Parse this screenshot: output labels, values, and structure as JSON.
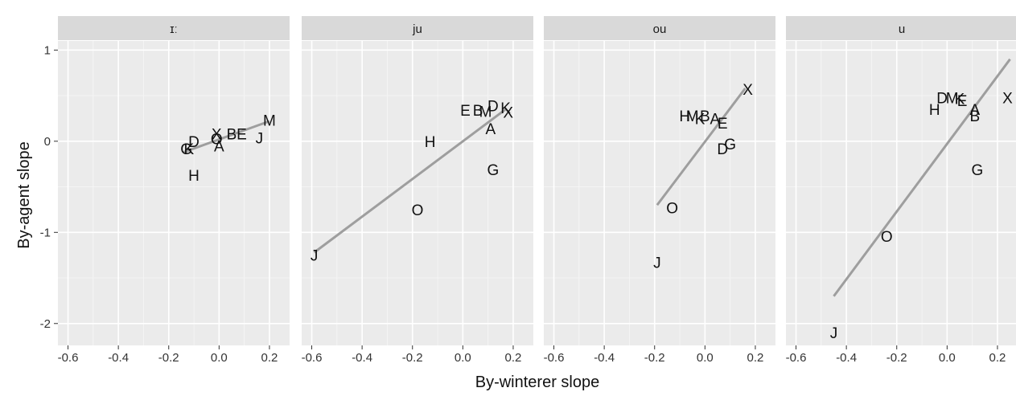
{
  "chart_data": {
    "type": "scatter",
    "xlabel": "By-winterer slope",
    "ylabel": "By-agent slope",
    "x_ticks": [
      "-0.6",
      "-0.4",
      "-0.2",
      "0.0",
      "0.2"
    ],
    "y_ticks": [
      "1",
      "0",
      "-1",
      "-2"
    ],
    "xlim": [
      -0.64,
      0.28
    ],
    "ylim": [
      -2.24,
      1.1
    ],
    "grid": true,
    "facets": [
      {
        "label": "ɪː",
        "fit_line": {
          "x": [
            -0.14,
            0.2
          ],
          "y": [
            -0.12,
            0.22
          ]
        },
        "points": [
          {
            "label": "M",
            "x": 0.2,
            "y": 0.23
          },
          {
            "label": "X",
            "x": -0.01,
            "y": 0.08
          },
          {
            "label": "B",
            "x": 0.05,
            "y": 0.08
          },
          {
            "label": "E",
            "x": 0.09,
            "y": 0.08
          },
          {
            "label": "J",
            "x": 0.16,
            "y": 0.04
          },
          {
            "label": "D",
            "x": -0.1,
            "y": 0.0
          },
          {
            "label": "O",
            "x": -0.01,
            "y": 0.03
          },
          {
            "label": "A",
            "x": 0.0,
            "y": -0.05
          },
          {
            "label": "G",
            "x": -0.13,
            "y": -0.08
          },
          {
            "label": "K",
            "x": -0.12,
            "y": -0.08
          },
          {
            "label": "H",
            "x": -0.1,
            "y": -0.37
          }
        ]
      },
      {
        "label": "ju",
        "fit_line": {
          "x": [
            -0.59,
            0.17
          ],
          "y": [
            -1.22,
            0.35
          ]
        },
        "points": [
          {
            "label": "E",
            "x": 0.01,
            "y": 0.34
          },
          {
            "label": "B",
            "x": 0.06,
            "y": 0.34
          },
          {
            "label": "M",
            "x": 0.09,
            "y": 0.33
          },
          {
            "label": "D",
            "x": 0.12,
            "y": 0.39
          },
          {
            "label": "K",
            "x": 0.17,
            "y": 0.37
          },
          {
            "label": "X",
            "x": 0.18,
            "y": 0.32
          },
          {
            "label": "A",
            "x": 0.11,
            "y": 0.14
          },
          {
            "label": "H",
            "x": -0.13,
            "y": 0.0
          },
          {
            "label": "G",
            "x": 0.12,
            "y": -0.31
          },
          {
            "label": "O",
            "x": -0.18,
            "y": -0.75
          },
          {
            "label": "J",
            "x": -0.59,
            "y": -1.25
          }
        ]
      },
      {
        "label": "ou",
        "fit_line": {
          "x": [
            -0.19,
            0.16
          ],
          "y": [
            -0.7,
            0.58
          ]
        },
        "points": [
          {
            "label": "X",
            "x": 0.17,
            "y": 0.57
          },
          {
            "label": "H",
            "x": -0.08,
            "y": 0.28
          },
          {
            "label": "M",
            "x": -0.05,
            "y": 0.28
          },
          {
            "label": "B",
            "x": 0.0,
            "y": 0.28
          },
          {
            "label": "K",
            "x": -0.02,
            "y": 0.25
          },
          {
            "label": "A",
            "x": 0.04,
            "y": 0.25
          },
          {
            "label": "E",
            "x": 0.07,
            "y": 0.2
          },
          {
            "label": "G",
            "x": 0.1,
            "y": -0.03
          },
          {
            "label": "D",
            "x": 0.07,
            "y": -0.08
          },
          {
            "label": "O",
            "x": -0.13,
            "y": -0.73
          },
          {
            "label": "J",
            "x": -0.19,
            "y": -1.33
          }
        ]
      },
      {
        "label": "u",
        "fit_line": {
          "x": [
            -0.45,
            0.25
          ],
          "y": [
            -1.7,
            0.9
          ]
        },
        "points": [
          {
            "label": "D",
            "x": -0.02,
            "y": 0.48
          },
          {
            "label": "M",
            "x": 0.02,
            "y": 0.48
          },
          {
            "label": "K",
            "x": 0.05,
            "y": 0.47
          },
          {
            "label": "E",
            "x": 0.06,
            "y": 0.45
          },
          {
            "label": "X",
            "x": 0.24,
            "y": 0.48
          },
          {
            "label": "H",
            "x": -0.05,
            "y": 0.35
          },
          {
            "label": "A",
            "x": 0.11,
            "y": 0.35
          },
          {
            "label": "B",
            "x": 0.11,
            "y": 0.28
          },
          {
            "label": "G",
            "x": 0.12,
            "y": -0.31
          },
          {
            "label": "O",
            "x": -0.24,
            "y": -1.04
          },
          {
            "label": "J",
            "x": -0.45,
            "y": -2.1
          }
        ]
      }
    ]
  }
}
